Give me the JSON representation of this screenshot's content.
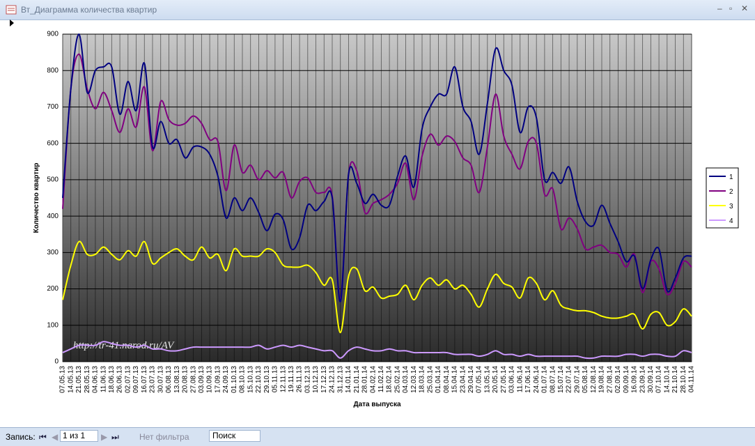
{
  "window": {
    "title": "Вт_Диаграмма количества квартир"
  },
  "chart_data": {
    "type": "line",
    "y_label": "Количество квартир",
    "x_label": "Дата выпуска",
    "watermark": "http://tr-41.narod.ru/AV",
    "categories": [
      "07.05.13",
      "14.05.13",
      "21.05.13",
      "28.05.13",
      "04.06.13",
      "11.06.13",
      "18.06.13",
      "26.06.13",
      "02.07.13",
      "09.07.13",
      "16.07.13",
      "23.07.13",
      "30.07.13",
      "06.08.13",
      "13.08.13",
      "20.08.13",
      "27.08.13",
      "03.09.13",
      "10.09.13",
      "17.09.13",
      "24.09.13",
      "01.10.13",
      "08.10.13",
      "15.10.13",
      "22.10.13",
      "29.10.13",
      "05.11.13",
      "12.11.13",
      "19.11.13",
      "26.11.13",
      "03.12.13",
      "10.12.13",
      "17.12.13",
      "24.12.13",
      "31.12.13",
      "14.01.14",
      "21.01.14",
      "28.01.14",
      "04.02.14",
      "11.02.14",
      "18.02.14",
      "25.02.14",
      "04.03.14",
      "12.03.14",
      "18.03.14",
      "25.03.14",
      "01.04.14",
      "08.04.14",
      "15.04.14",
      "23.04.14",
      "29.04.14",
      "07.05.14",
      "13.05.14",
      "20.05.14",
      "27.05.14",
      "03.06.14",
      "11.06.14",
      "17.06.14",
      "24.06.14",
      "01.07.14",
      "08.07.14",
      "15.07.14",
      "22.07.14",
      "29.07.14",
      "05.08.14",
      "12.08.14",
      "19.08.14",
      "27.08.14",
      "02.09.14",
      "09.09.14",
      "16.09.14",
      "23.09.14",
      "30.09.14",
      "07.10.14",
      "14.10.14",
      "21.10.14",
      "28.10.14",
      "04.11.14"
    ],
    "series": [
      {
        "name": "1",
        "color": "#000080",
        "values": [
          450,
          750,
          900,
          740,
          800,
          810,
          810,
          680,
          770,
          690,
          820,
          590,
          660,
          600,
          610,
          560,
          590,
          590,
          570,
          510,
          395,
          450,
          415,
          450,
          410,
          360,
          405,
          390,
          310,
          340,
          430,
          415,
          440,
          450,
          165,
          515,
          490,
          435,
          460,
          430,
          430,
          510,
          565,
          480,
          640,
          700,
          735,
          735,
          810,
          700,
          660,
          570,
          710,
          860,
          800,
          760,
          630,
          700,
          670,
          500,
          520,
          490,
          535,
          440,
          385,
          375,
          430,
          380,
          330,
          275,
          290,
          200,
          280,
          310,
          195,
          230,
          285,
          290
        ]
      },
      {
        "name": "2",
        "color": "#800080",
        "values": [
          420,
          750,
          845,
          750,
          695,
          740,
          690,
          630,
          695,
          645,
          755,
          580,
          715,
          665,
          650,
          655,
          675,
          655,
          610,
          605,
          470,
          595,
          520,
          540,
          500,
          525,
          505,
          520,
          450,
          495,
          505,
          465,
          465,
          455,
          170,
          515,
          525,
          410,
          435,
          445,
          460,
          490,
          545,
          445,
          565,
          625,
          595,
          620,
          605,
          560,
          540,
          465,
          590,
          735,
          620,
          570,
          530,
          605,
          600,
          460,
          475,
          365,
          395,
          365,
          310,
          315,
          320,
          300,
          295,
          260,
          295,
          190,
          275,
          255,
          185,
          215,
          275,
          260
        ]
      },
      {
        "name": "3",
        "color": "#ffff00",
        "values": [
          170,
          265,
          330,
          295,
          295,
          315,
          295,
          280,
          305,
          290,
          330,
          270,
          285,
          300,
          310,
          290,
          280,
          315,
          285,
          295,
          250,
          310,
          290,
          290,
          290,
          310,
          300,
          265,
          260,
          260,
          265,
          245,
          210,
          225,
          80,
          235,
          255,
          195,
          205,
          175,
          180,
          185,
          210,
          170,
          210,
          230,
          210,
          225,
          200,
          210,
          185,
          150,
          200,
          240,
          215,
          205,
          175,
          230,
          215,
          170,
          195,
          155,
          145,
          140,
          140,
          135,
          125,
          120,
          120,
          125,
          130,
          90,
          130,
          135,
          100,
          110,
          145,
          125
        ]
      },
      {
        "name": "4",
        "color": "#cc99ff",
        "values": [
          25,
          35,
          45,
          45,
          45,
          55,
          50,
          45,
          45,
          40,
          45,
          35,
          35,
          30,
          30,
          35,
          40,
          40,
          40,
          40,
          40,
          40,
          40,
          40,
          45,
          35,
          40,
          45,
          40,
          45,
          40,
          35,
          30,
          30,
          10,
          30,
          40,
          35,
          30,
          30,
          35,
          30,
          30,
          25,
          25,
          25,
          25,
          25,
          20,
          20,
          20,
          15,
          20,
          30,
          20,
          20,
          15,
          20,
          15,
          15,
          15,
          15,
          15,
          15,
          10,
          10,
          15,
          15,
          15,
          20,
          20,
          15,
          20,
          20,
          15,
          15,
          30,
          25
        ]
      }
    ],
    "ylim": [
      0,
      900
    ],
    "yticks": [
      0,
      100,
      200,
      300,
      400,
      500,
      600,
      700,
      800,
      900
    ],
    "grid": true,
    "legend": "right",
    "smooth": true
  },
  "nav": {
    "record_label": "Запись:",
    "record_value": "1 из 1",
    "filter": "Нет фильтра",
    "search": "Поиск"
  }
}
